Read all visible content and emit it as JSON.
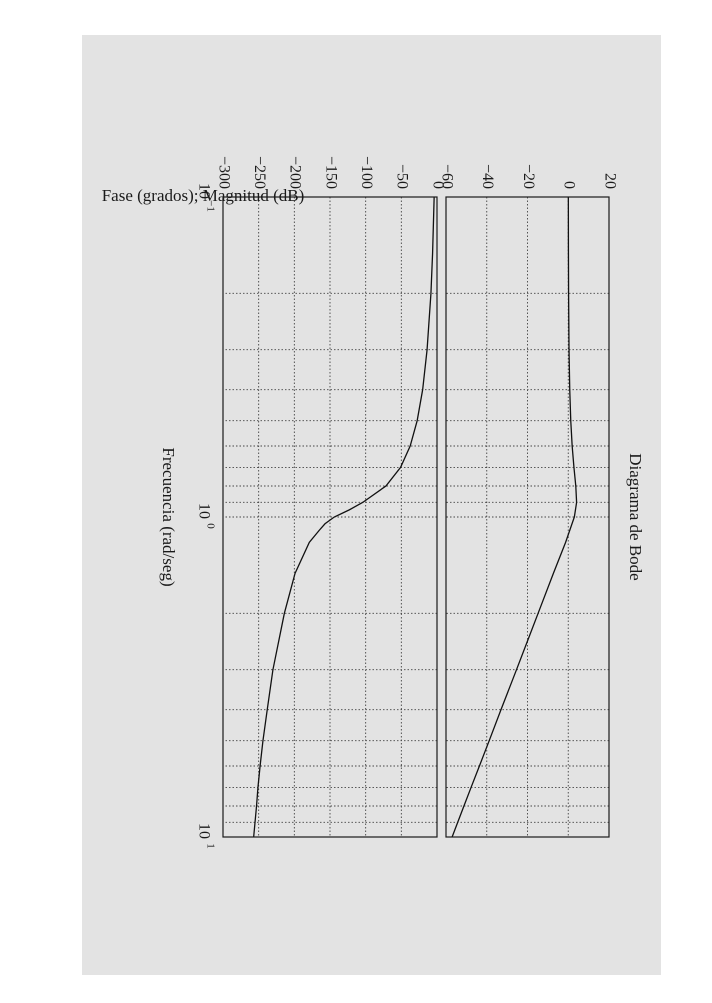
{
  "chart_data": {
    "type": "line",
    "orientation": "rotated-90-clockwise",
    "title": "Diagrama de Bode",
    "xlabel": "Frecuencia (rad/seg)",
    "ylabel": "Fase (grados); Magnitud (dB)",
    "x_scale": "log",
    "xlim": [
      0.1,
      10
    ],
    "x_ticks": [
      {
        "base": "10",
        "exp": "−1",
        "value": 0.1
      },
      {
        "base": "10",
        "exp": "0",
        "value": 1
      },
      {
        "base": "10",
        "exp": "1",
        "value": 10
      }
    ],
    "grid": true,
    "panels": [
      {
        "name": "Magnitud",
        "ylim": [
          -60,
          20
        ],
        "y_ticks": [
          "−60",
          "−40",
          "−20",
          "0",
          "20"
        ],
        "y_tick_values": [
          -60,
          -40,
          -20,
          0,
          20
        ],
        "series": [
          {
            "x": [
              0.1,
              0.15,
              0.2,
              0.3,
              0.4,
              0.5,
              0.6,
              0.7,
              0.8,
              0.9,
              1.0,
              1.2,
              1.5,
              2,
              3,
              4,
              5,
              6,
              7,
              8,
              10
            ],
            "y": [
              0.04,
              0.09,
              0.16,
              0.38,
              0.73,
              1.23,
              1.92,
              2.8,
              3.7,
              4.1,
              3.0,
              -1.3,
              -7.3,
              -14.8,
              -25.4,
              -33.0,
              -38.8,
              -43.6,
              -47.7,
              -51.2,
              -57.0
            ]
          }
        ]
      },
      {
        "name": "Fase",
        "ylim": [
          -300,
          0
        ],
        "y_ticks": [
          "−300",
          "−250",
          "−200",
          "−150",
          "−100",
          "−50",
          "0"
        ],
        "y_tick_values": [
          -300,
          -250,
          -200,
          -150,
          -100,
          -50,
          0
        ],
        "series": [
          {
            "x": [
              0.1,
              0.15,
              0.2,
              0.3,
              0.4,
              0.5,
              0.6,
              0.7,
              0.8,
              0.9,
              0.95,
              1.0,
              1.05,
              1.1,
              1.2,
              1.5,
              2,
              3,
              4,
              5,
              6,
              7,
              8,
              10
            ],
            "y": [
              -4,
              -6.2,
              -8.5,
              -13.9,
              -20.1,
              -27.8,
              -37.6,
              -51.1,
              -71.6,
              -104,
              -123,
              -144,
              -157,
              -165,
              -179,
              -199,
              -214,
              -230,
              -238,
              -244,
              -248,
              -251,
              -253,
              -257
            ]
          }
        ]
      }
    ]
  }
}
